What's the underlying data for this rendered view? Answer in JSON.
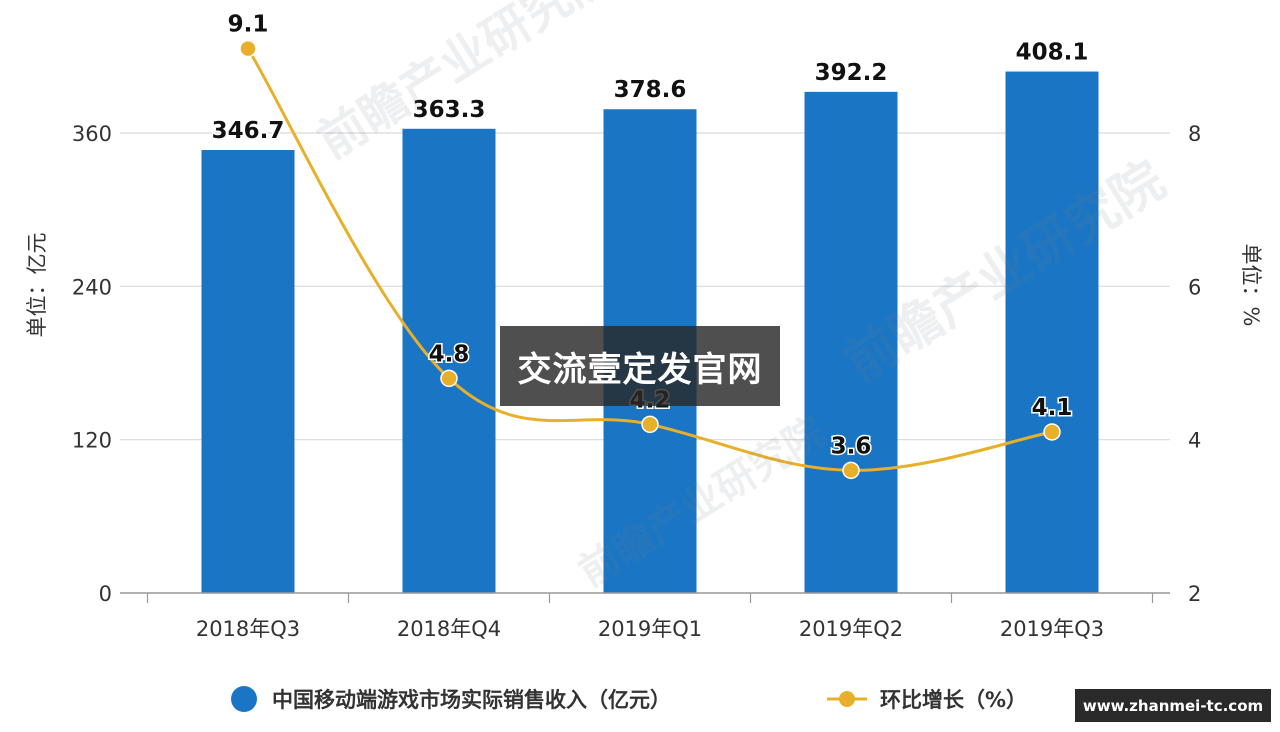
{
  "chart_data": {
    "type": "bar",
    "categories": [
      "2018年Q3",
      "2018年Q4",
      "2019年Q1",
      "2019年Q2",
      "2019年Q3"
    ],
    "series": [
      {
        "name": "中国移动端游戏市场实际销售收入（亿元）",
        "type": "bar",
        "axis": "left",
        "values": [
          346.7,
          363.3,
          378.6,
          392.2,
          408.1
        ],
        "labels": [
          "346.7",
          "363.3",
          "378.6",
          "392.2",
          "408.1"
        ],
        "color": "#1a75c4"
      },
      {
        "name": "环比增长（%）",
        "type": "line",
        "axis": "right",
        "values": [
          9.1,
          4.8,
          4.2,
          3.6,
          4.1
        ],
        "labels": [
          "9.1",
          "4.8",
          "4.2",
          "3.6",
          "4.1"
        ],
        "color": "#e8b02a"
      }
    ],
    "y_left": {
      "label": "单位：亿元",
      "ylim": [
        0,
        420
      ],
      "ticks": [
        0,
        120,
        240,
        360
      ],
      "tick_labels": [
        "0",
        "120",
        "240",
        "360"
      ]
    },
    "y_right": {
      "label": "单位：%",
      "ylim": [
        2,
        9.5
      ],
      "ticks": [
        2,
        4,
        6,
        8
      ],
      "tick_labels": [
        "2",
        "4",
        "6",
        "8"
      ]
    },
    "grid": true,
    "legend": "bottom"
  },
  "watermark": {
    "brand": "前瞻产业研究院",
    "overlay_text": "交流壹定发官网",
    "site_badge": "www.zhanmei-tc.com"
  }
}
